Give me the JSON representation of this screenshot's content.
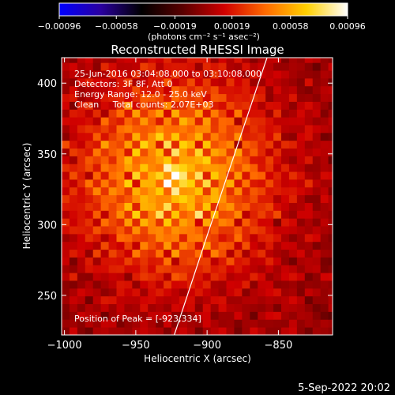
{
  "chart_data": {
    "type": "heatmap",
    "title": "Reconstructed RHESSI Image",
    "xlabel": "Heliocentric X (arcsec)",
    "ylabel": "Heliocentric Y (arcsec)",
    "xlim": [
      -1002,
      -812
    ],
    "ylim": [
      222,
      418
    ],
    "x_ticks": [
      -1000,
      -950,
      -900,
      -850
    ],
    "x_tick_labels": [
      "−1000",
      "−950",
      "−900",
      "−850"
    ],
    "y_ticks": [
      250,
      300,
      350,
      400
    ],
    "y_tick_labels": [
      "250",
      "300",
      "350",
      "400"
    ],
    "colorbar": {
      "range": [
        -0.00096,
        0.00096
      ],
      "ticks": [
        -0.00096,
        -0.00058,
        -0.00019,
        0.00019,
        0.00058,
        0.00096
      ],
      "tick_labels": [
        "−0.00096",
        "−0.00058",
        "−0.00019",
        "0.00019",
        "0.00058",
        "0.00096"
      ],
      "units": "(photons cm⁻² s⁻¹ asec⁻²)",
      "colors": [
        "#0000ff",
        "#2a00a0",
        "#000000",
        "#5a0000",
        "#d00000",
        "#ff6a00",
        "#ffd000",
        "#ffffff"
      ]
    },
    "source": {
      "center": [
        -923,
        334
      ],
      "peak_value": 0.00096,
      "ripple_period_arcsec": 9
    },
    "limb": [
      [
        -923,
        222
      ],
      [
        -900,
        292
      ],
      [
        -880,
        352
      ],
      [
        -864,
        400
      ],
      [
        -858,
        418
      ]
    ],
    "annotations": [
      "25-Jun-2016 03:04:08.000 to 03:10:08.000",
      "Detectors: 3F 8F, Att 0",
      "Energy Range: 12.0 - 25.0 keV",
      "Clean     Total counts: 2.07E+03"
    ],
    "peak_label": "Position of Peak = [-923,334]",
    "timestamp": "5-Sep-2022 20:02"
  }
}
